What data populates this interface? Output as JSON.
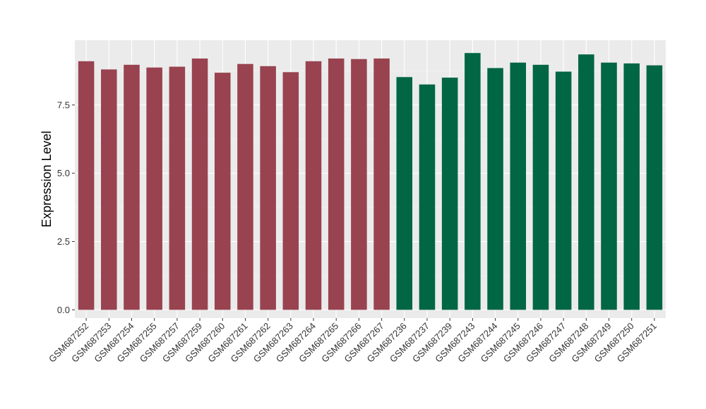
{
  "chart_data": {
    "type": "bar",
    "title": "",
    "xlabel": "",
    "ylabel": "Expression Level",
    "ylim": [
      -0.3,
      9.87
    ],
    "yticks": [
      0.0,
      2.5,
      5.0,
      7.5
    ],
    "ytick_labels": [
      "0.0",
      "2.5",
      "5.0",
      "7.5"
    ],
    "grid": true,
    "legend": "none",
    "categories": [
      "GSM687252",
      "GSM687253",
      "GSM687254",
      "GSM687255",
      "GSM687257",
      "GSM687259",
      "GSM687260",
      "GSM687261",
      "GSM687262",
      "GSM687263",
      "GSM687264",
      "GSM687265",
      "GSM687266",
      "GSM687267",
      "GSM687236",
      "GSM687237",
      "GSM687239",
      "GSM687243",
      "GSM687244",
      "GSM687245",
      "GSM687246",
      "GSM687247",
      "GSM687248",
      "GSM687249",
      "GSM687250",
      "GSM687251"
    ],
    "values": [
      9.1,
      8.8,
      8.97,
      8.87,
      8.9,
      9.2,
      8.68,
      9.0,
      8.92,
      8.7,
      9.1,
      9.2,
      9.18,
      9.2,
      8.52,
      8.25,
      8.5,
      9.4,
      8.85,
      9.05,
      8.97,
      8.72,
      9.35,
      9.05,
      9.02,
      8.95
    ],
    "group_sizes": [
      14,
      12
    ],
    "colors": [
      "#994350",
      "#006644"
    ]
  },
  "style": {
    "panel_bg": "#ebebeb",
    "grid_major": "#ffffff",
    "grid_minor": "#f5f5f5",
    "tick_color": "#333333"
  }
}
